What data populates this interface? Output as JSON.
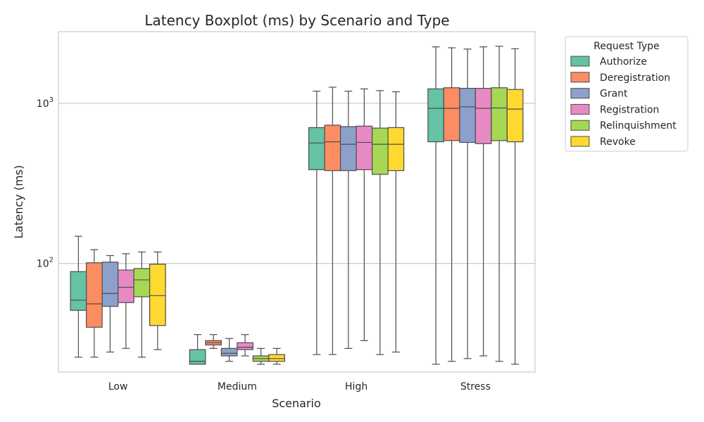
{
  "chart_data": {
    "type": "boxplot",
    "title": "Latency Boxplot (ms) by Scenario and Type",
    "xlabel": "Scenario",
    "ylabel": "Latency (ms)",
    "yscale": "log",
    "ylim": [
      21,
      2800
    ],
    "yticks": [
      {
        "value": 100,
        "base": "10",
        "exp": "2"
      },
      {
        "value": 1000,
        "base": "10",
        "exp": "3"
      }
    ],
    "grid": "horizontal",
    "legend_title": "Request Type",
    "legend_position": "outside-top-right",
    "categories": [
      "Low",
      "Medium",
      "High",
      "Stress"
    ],
    "series": [
      {
        "name": "Authorize",
        "color": "#66c2a5",
        "boxes": [
          {
            "min": 26,
            "q1": 51,
            "median": 59,
            "q3": 89,
            "max": 148
          },
          {
            "min": 23.5,
            "q1": 23.5,
            "median": 24.5,
            "q3": 29,
            "max": 36
          },
          {
            "min": 27,
            "q1": 385,
            "median": 565,
            "q3": 705,
            "max": 1190
          },
          {
            "min": 23.5,
            "q1": 575,
            "median": 930,
            "q3": 1230,
            "max": 2250
          }
        ]
      },
      {
        "name": "Deregistration",
        "color": "#fc8d62",
        "boxes": [
          {
            "min": 26,
            "q1": 40,
            "median": 56,
            "q3": 101,
            "max": 122
          },
          {
            "min": 29.5,
            "q1": 31,
            "median": 32,
            "q3": 33,
            "max": 36
          },
          {
            "min": 27,
            "q1": 380,
            "median": 575,
            "q3": 730,
            "max": 1260
          },
          {
            "min": 24.5,
            "q1": 585,
            "median": 930,
            "q3": 1250,
            "max": 2220
          }
        ]
      },
      {
        "name": "Grant",
        "color": "#8da0cb",
        "boxes": [
          {
            "min": 28,
            "q1": 54,
            "median": 65,
            "q3": 102,
            "max": 112
          },
          {
            "min": 24.5,
            "q1": 26.5,
            "median": 27.5,
            "q3": 29.5,
            "max": 34
          },
          {
            "min": 29.5,
            "q1": 380,
            "median": 555,
            "q3": 715,
            "max": 1190
          },
          {
            "min": 25.5,
            "q1": 570,
            "median": 950,
            "q3": 1240,
            "max": 2180
          }
        ]
      },
      {
        "name": "Registration",
        "color": "#e78ac3",
        "boxes": [
          {
            "min": 29.5,
            "q1": 57,
            "median": 71,
            "q3": 91,
            "max": 115
          },
          {
            "min": 26.5,
            "q1": 29,
            "median": 30,
            "q3": 32,
            "max": 36
          },
          {
            "min": 33,
            "q1": 385,
            "median": 570,
            "q3": 720,
            "max": 1230
          },
          {
            "min": 26.5,
            "q1": 560,
            "median": 930,
            "q3": 1240,
            "max": 2250
          }
        ]
      },
      {
        "name": "Relinquishment",
        "color": "#a6d854",
        "boxes": [
          {
            "min": 26,
            "q1": 62,
            "median": 79,
            "q3": 93,
            "max": 118
          },
          {
            "min": 23.5,
            "q1": 24.5,
            "median": 25.5,
            "q3": 26.5,
            "max": 29.5
          },
          {
            "min": 27,
            "q1": 360,
            "median": 555,
            "q3": 700,
            "max": 1200
          },
          {
            "min": 24.5,
            "q1": 585,
            "median": 935,
            "q3": 1250,
            "max": 2270
          }
        ]
      },
      {
        "name": "Revoke",
        "color": "#ffd92f",
        "boxes": [
          {
            "min": 29,
            "q1": 41,
            "median": 63,
            "q3": 99,
            "max": 118
          },
          {
            "min": 23.5,
            "q1": 24.5,
            "median": 25.5,
            "q3": 27,
            "max": 29.5
          },
          {
            "min": 28,
            "q1": 380,
            "median": 555,
            "q3": 705,
            "max": 1180
          },
          {
            "min": 23.5,
            "q1": 575,
            "median": 920,
            "q3": 1220,
            "max": 2190
          }
        ]
      }
    ]
  }
}
